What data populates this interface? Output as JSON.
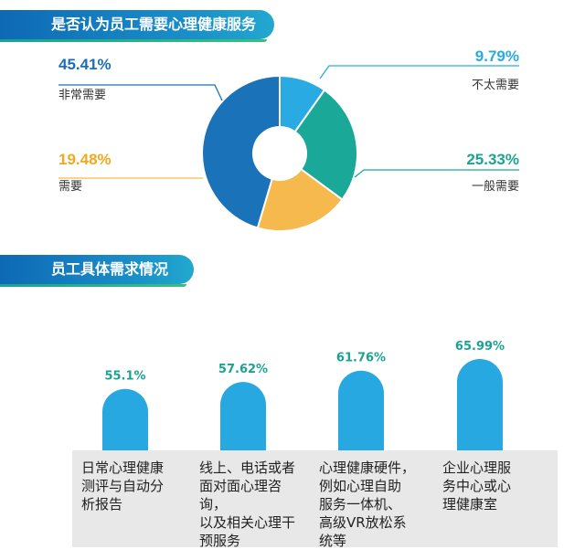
{
  "section1": {
    "title": "是否认为员工需要心理健康服务"
  },
  "section2": {
    "title": "员工具体需求情况"
  },
  "colors": {
    "blue_dark": "#1a72b8",
    "blue_light": "#2aaae2",
    "teal": "#1aa898",
    "orange": "#f6b94e",
    "green_text": "#1ba392",
    "bar": "#28a8e0",
    "caption_bg": "#e8e8e8"
  },
  "chart_data": [
    {
      "type": "pie",
      "title": "是否认为员工需要心理健康服务",
      "slices": [
        {
          "label": "不太需要",
          "value": 9.79,
          "display": "9.79%",
          "color": "#2aaae2"
        },
        {
          "label": "一般需要",
          "value": 25.33,
          "display": "25.33%",
          "color": "#1aa898"
        },
        {
          "label": "需要",
          "value": 19.48,
          "display": "19.48%",
          "color": "#f6b94e"
        },
        {
          "label": "非常需要",
          "value": 45.41,
          "display": "45.41%",
          "color": "#1a72b8"
        }
      ],
      "donut": true
    },
    {
      "type": "bar",
      "title": "员工具体需求情况",
      "categories": [
        [
          "日常心理健康",
          "测评与自动分",
          "析报告"
        ],
        [
          "线上、电话或者",
          "面对面心理咨询，",
          "以及相关心理干",
          "预服务"
        ],
        [
          "心理健康硬件，",
          "例如心理自助",
          "服务一体机、",
          "高级VR放松系",
          "统等"
        ],
        [
          "企业心理服",
          "务中心或心",
          "理健康室"
        ]
      ],
      "values": [
        55.1,
        57.62,
        61.76,
        65.99
      ],
      "value_labels": [
        "55.1%",
        "57.62%",
        "61.76%",
        "65.99%"
      ]
    }
  ]
}
